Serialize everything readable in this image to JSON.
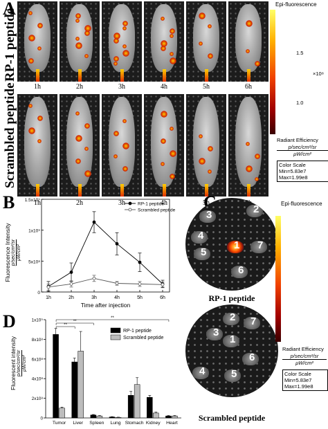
{
  "panels": {
    "a_letter": "A",
    "b_letter": "B",
    "c_letter": "C",
    "d_letter": "D"
  },
  "panel_a": {
    "row1_label": "RP-1 peptide",
    "row2_label": "Scrambled peptide",
    "times": [
      "1h",
      "2h",
      "3h",
      "4h",
      "5h",
      "6h"
    ],
    "colorbar": {
      "title": "Epi-fluorescence",
      "ticks": [
        "1.5",
        "1.0"
      ],
      "exponent": "×10⁸",
      "unit_title": "Radiant Efficiency",
      "unit_num": "p/sec/cm²/sr",
      "unit_den": "μW/cm²",
      "scale_title": "Color Scale",
      "min": "Min=5.83e7",
      "max": "Max=1.99e8"
    }
  },
  "panel_b": {
    "legend": [
      "RP-1 peptide",
      "Scrambled peptide"
    ],
    "ylabel": "Fluorescence Intensity",
    "yunit_num": "p/sec/cm²/sr",
    "yunit_den": "μW/cm²",
    "xlabel": "Time after injection",
    "yticks": [
      "1.5x10⁹",
      "1x10⁹",
      "5x10⁸",
      "0"
    ],
    "xticks": [
      "1h",
      "2h",
      "3h",
      "4h",
      "5h",
      "6h"
    ]
  },
  "panel_c": {
    "colorbar": {
      "title": "Epi-fluorescence",
      "unit_title": "Radiant Efficiency",
      "unit_num": "p/sec/cm²/sr",
      "unit_den": "μW/cm²",
      "scale_title": "Color Scale",
      "min": "Min=5.83e7",
      "max": "Max=1.99e8"
    },
    "top_label": "RP-1 peptide",
    "bottom_label": "Scrambled peptide",
    "top_numbers": [
      "1",
      "2",
      "3",
      "4",
      "5",
      "6",
      "7"
    ],
    "bottom_numbers": [
      "1",
      "2",
      "3",
      "4",
      "5",
      "6",
      "7"
    ]
  },
  "panel_d": {
    "ylabel": "Fluorescent intensity",
    "yunit_num": "p/sec/cm²/sr",
    "yunit_den": "μW/cm²",
    "legend": [
      "RP-1 peptide",
      "Scrambled peptide"
    ],
    "yticks": [
      "1x10⁹",
      "8x10⁸",
      "6x10⁸",
      "4x10⁸",
      "2x10⁸",
      "0"
    ],
    "significance": [
      "**",
      "**",
      "**"
    ]
  },
  "chart_data": [
    {
      "type": "line",
      "panel": "B",
      "x": [
        "1h",
        "2h",
        "3h",
        "4h",
        "5h",
        "6h"
      ],
      "series": [
        {
          "name": "RP-1 peptide",
          "values": [
            90000000,
            320000000,
            1130000000,
            780000000,
            480000000,
            130000000
          ],
          "errors": [
            80000000,
            150000000,
            170000000,
            180000000,
            150000000,
            60000000
          ],
          "marker": "filled-circle",
          "color": "#000000"
        },
        {
          "name": "Scrambled peptide",
          "values": [
            80000000,
            130000000,
            220000000,
            140000000,
            130000000,
            120000000
          ],
          "errors": [
            50000000,
            50000000,
            50000000,
            30000000,
            40000000,
            40000000
          ],
          "marker": "open-circle",
          "color": "#555555"
        }
      ],
      "xlabel": "Time after injection",
      "ylim": [
        0,
        1500000000
      ],
      "ytick_values": [
        1500000000,
        1000000000,
        500000000,
        0
      ]
    },
    {
      "type": "bar",
      "panel": "D",
      "categories": [
        "Tumor",
        "Liver",
        "Spleen",
        "Lung",
        "Stomach",
        "Kidney",
        "Heart"
      ],
      "series": [
        {
          "name": "RP-1 peptide",
          "values": [
            850000000,
            570000000,
            30000000,
            10000000,
            230000000,
            210000000,
            20000000
          ],
          "errors": [
            60000000,
            40000000,
            5000000,
            3000000,
            40000000,
            20000000,
            5000000
          ],
          "color": "#000000"
        },
        {
          "name": "Scrambled peptide",
          "values": [
            100000000,
            680000000,
            20000000,
            5000000,
            340000000,
            50000000,
            20000000
          ],
          "errors": [
            10000000,
            200000000,
            5000000,
            3000000,
            70000000,
            10000000,
            5000000
          ],
          "color": "#bdbdbd"
        }
      ],
      "ylim": [
        0,
        1000000000
      ],
      "ytick_values": [
        1000000000,
        800000000,
        600000000,
        400000000,
        200000000,
        0
      ]
    }
  ]
}
